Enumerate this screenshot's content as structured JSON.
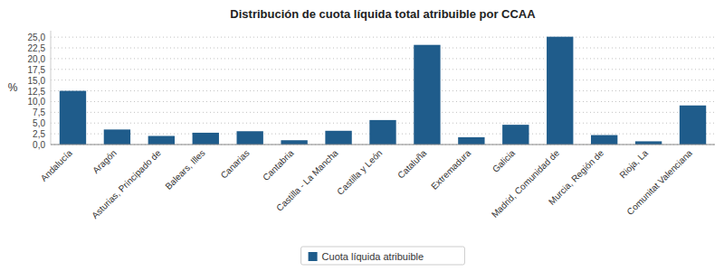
{
  "chart_data": {
    "type": "bar",
    "title": "Distribución de cuota líquida total atribuible por CCAA",
    "ylabel": "%",
    "categories": [
      "Andalucía",
      "Aragón",
      "Asturias, Principado de",
      "Balears, Illes",
      "Canarias",
      "Cantabria",
      "Castilla - La Mancha",
      "Castilla y León",
      "Cataluña",
      "Extremadura",
      "Galicia",
      "Madrid, Comunidad de",
      "Murcia, Región de",
      "Rioja, La",
      "Comunitat Valenciana"
    ],
    "series": [
      {
        "name": "Cuota líquida atribuible",
        "color": "#1f5c8b",
        "values": [
          12.5,
          3.5,
          2.0,
          2.75,
          3.1,
          1.0,
          3.2,
          5.7,
          23.2,
          1.7,
          4.6,
          25.1,
          2.2,
          0.75,
          9.1
        ]
      }
    ],
    "ylim": [
      0,
      26.5
    ],
    "yticks": [
      {
        "value": 0.0,
        "label": "0,0"
      },
      {
        "value": 2.5,
        "label": "2,5"
      },
      {
        "value": 5.0,
        "label": "5,0"
      },
      {
        "value": 7.5,
        "label": "7,5"
      },
      {
        "value": 10.0,
        "label": "10,0"
      },
      {
        "value": 12.5,
        "label": "12,5"
      },
      {
        "value": 15.0,
        "label": "15,0"
      },
      {
        "value": 17.5,
        "label": "17,5"
      },
      {
        "value": 20.0,
        "label": "20,0"
      },
      {
        "value": 22.5,
        "label": "22,5"
      },
      {
        "value": 25.0,
        "label": "25,0"
      }
    ],
    "grid": true,
    "legend": "bottom"
  }
}
